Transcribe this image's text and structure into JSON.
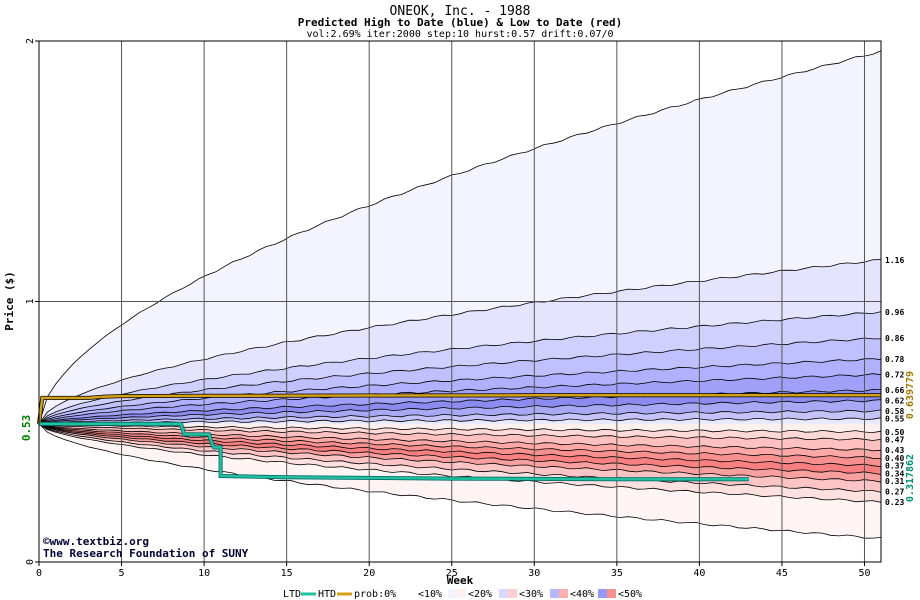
{
  "header": {
    "title": "ONEOK, Inc. - 1988",
    "subtitle": "Predicted High to Date (blue) &  Low to Date (red)",
    "params": "vol:2.69% iter:2000 step:10 hurst:0.57 drift:0.07/0"
  },
  "credits": {
    "line1": "©www.textbiz.org",
    "line2": "The Research Foundation of SUNY"
  },
  "legend": {
    "ltd": "LTD",
    "htd": "HTD",
    "prob": "prob:0%",
    "p10": "<10%",
    "p20": "<20%",
    "p30": "<30%",
    "p40": "<40%",
    "p50": "<50%"
  },
  "colors": {
    "htd_line": "#d4a017",
    "ltd_line": "#20c0a0",
    "ltd_line_edge": "#006060",
    "start_label": "#008000",
    "high_label": "#a07800",
    "low_label": "#009070",
    "grid": "#555555"
  },
  "chart_data": {
    "type": "area",
    "xlabel": "Week",
    "ylabel": "Price ($)",
    "xlim": [
      0,
      51
    ],
    "ylim": [
      0,
      2
    ],
    "x_ticks": [
      0,
      5,
      10,
      15,
      20,
      25,
      30,
      35,
      40,
      45,
      50
    ],
    "y_ticks": [
      0,
      1,
      2
    ],
    "start_price": "0.53",
    "high_to_date_label": "0.639779",
    "low_to_date_label": "0.317862",
    "upper_percentile_bands": [
      {
        "end": 1.96,
        "width_at_1w": 0.09,
        "label": ""
      },
      {
        "end": 1.16,
        "width_at_1w": 0.045,
        "label": "1.16"
      },
      {
        "end": 0.96,
        "width_at_1w": 0.032,
        "label": "0.96"
      },
      {
        "end": 0.86,
        "width_at_1w": 0.025,
        "label": "0.86"
      },
      {
        "end": 0.78,
        "width_at_1w": 0.02,
        "label": "0.78"
      },
      {
        "end": 0.72,
        "width_at_1w": 0.016,
        "label": "0.72"
      },
      {
        "end": 0.66,
        "width_at_1w": 0.012,
        "label": "0.66"
      },
      {
        "end": 0.62,
        "width_at_1w": 0.009,
        "label": "0.62"
      },
      {
        "end": 0.58,
        "width_at_1w": 0.006,
        "label": "0.58"
      },
      {
        "end": 0.55,
        "width_at_1w": 0.003,
        "label": "0.55"
      }
    ],
    "lower_percentile_bands": [
      {
        "end": 0.5,
        "width_at_1w": 0.003,
        "label": "0.50"
      },
      {
        "end": 0.47,
        "width_at_1w": 0.006,
        "label": "0.47"
      },
      {
        "end": 0.43,
        "width_at_1w": 0.009,
        "label": "0.43"
      },
      {
        "end": 0.4,
        "width_at_1w": 0.012,
        "label": "0.40"
      },
      {
        "end": 0.37,
        "width_at_1w": 0.015,
        "label": "0.37"
      },
      {
        "end": 0.34,
        "width_at_1w": 0.018,
        "label": "0.34"
      },
      {
        "end": 0.31,
        "width_at_1w": 0.021,
        "label": "0.31"
      },
      {
        "end": 0.27,
        "width_at_1w": 0.025,
        "label": "0.27"
      },
      {
        "end": 0.23,
        "width_at_1w": 0.03,
        "label": "0.23"
      },
      {
        "end": 0.09,
        "width_at_1w": 0.045,
        "label": ""
      }
    ],
    "upper_fills": [
      "#f4f4ff",
      "#e4e4ff",
      "#d0d0ff",
      "#c0c0ff",
      "#b0b0ff",
      "#a0a0f8",
      "#8c8cf0",
      "#a8a8f4",
      "#c4c4f8",
      "#e8e8ff"
    ],
    "lower_fills": [
      "#fff0f0",
      "#ffd8d8",
      "#ffc0c0",
      "#ffa8a8",
      "#f89090",
      "#f88080",
      "#f8a0a0",
      "#fcc4c4",
      "#fde0e0",
      "#fff4f4"
    ],
    "htd_path": [
      [
        0,
        0.53
      ],
      [
        0.2,
        0.63
      ],
      [
        3,
        0.63
      ],
      [
        4,
        0.635
      ],
      [
        5,
        0.637
      ],
      [
        10,
        0.638
      ],
      [
        20,
        0.639
      ],
      [
        30,
        0.639779
      ],
      [
        51,
        0.639779
      ]
    ],
    "ltd_path": [
      [
        0,
        0.53
      ],
      [
        0.4,
        0.53
      ],
      [
        8.6,
        0.53
      ],
      [
        8.8,
        0.49
      ],
      [
        10.3,
        0.49
      ],
      [
        10.5,
        0.45
      ],
      [
        10.6,
        0.44
      ],
      [
        11,
        0.44
      ],
      [
        11,
        0.33
      ],
      [
        15,
        0.325
      ],
      [
        25,
        0.32
      ],
      [
        35,
        0.318
      ],
      [
        43,
        0.317862
      ]
    ]
  }
}
